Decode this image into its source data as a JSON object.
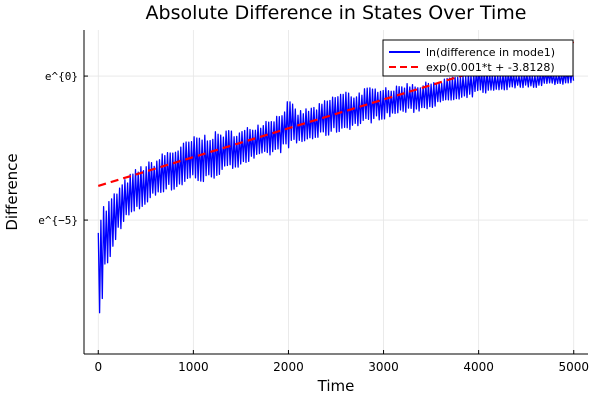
{
  "chart_data": {
    "type": "line",
    "title": "Absolute Difference in States Over Time",
    "xlabel": "Time",
    "ylabel": "Difference",
    "xlim": [
      -150,
      5150
    ],
    "ylim": [
      -9.65,
      1.6
    ],
    "x_ticks": [
      0,
      1000,
      2000,
      3000,
      4000,
      5000
    ],
    "x_tick_labels": [
      "0",
      "1000",
      "2000",
      "3000",
      "4000",
      "5000"
    ],
    "y_ticks": [
      0,
      -5
    ],
    "y_tick_labels": [
      "e^{0}",
      "e^{−5}"
    ],
    "grid": true,
    "legend_position": "top-right",
    "colors": {
      "series1": "#0000ff",
      "fit": "#ff0000"
    },
    "series": [
      {
        "name": "ln(difference in mode1)",
        "style": "solid",
        "x": [
          0,
          20,
          40,
          60,
          80,
          100,
          150,
          200,
          300,
          400,
          500,
          600,
          700,
          800,
          900,
          1000,
          1100,
          1200,
          1300,
          1400,
          1500,
          1600,
          1700,
          1800,
          1900,
          2000,
          2100,
          2200,
          2300,
          2400,
          2500,
          2600,
          2700,
          2800,
          2900,
          3000,
          3100,
          3200,
          3300,
          3400,
          3500,
          3600,
          3700,
          3800,
          3900,
          4000,
          4100,
          4200,
          4300,
          4400,
          4500,
          4600,
          4700,
          4800,
          4900,
          5000
        ],
        "upper": [
          -4.6,
          -4.5,
          -4.5,
          -4.4,
          -4.4,
          -4.3,
          -4.1,
          -3.9,
          -3.5,
          -3.2,
          -3.0,
          -2.9,
          -2.6,
          -2.5,
          -2.3,
          -2.1,
          -2.0,
          -1.95,
          -1.9,
          -1.85,
          -1.9,
          -1.7,
          -1.6,
          -1.4,
          -1.3,
          -0.8,
          -1.2,
          -1.1,
          -1.0,
          -0.8,
          -0.6,
          -0.5,
          -0.6,
          -0.4,
          -0.4,
          -0.3,
          -0.4,
          -0.25,
          -0.2,
          -0.3,
          -0.1,
          -0.2,
          0.05,
          0.0,
          0.1,
          0.3,
          0.15,
          0.05,
          0.2,
          0.1,
          0.15,
          0.05,
          0.2,
          0.1,
          0.15,
          0.35
        ],
        "lower": [
          -9.3,
          -8.8,
          -8.0,
          -6.5,
          -7.0,
          -6.8,
          -6.2,
          -5.5,
          -5.0,
          -4.8,
          -4.5,
          -4.2,
          -4.0,
          -4.0,
          -3.8,
          -3.6,
          -3.8,
          -3.6,
          -3.4,
          -3.3,
          -3.1,
          -3.0,
          -2.9,
          -2.8,
          -2.7,
          -2.5,
          -2.4,
          -2.3,
          -2.2,
          -2.1,
          -2.0,
          -1.9,
          -1.8,
          -1.7,
          -1.6,
          -1.5,
          -1.4,
          -1.3,
          -1.3,
          -1.2,
          -1.1,
          -1.0,
          -0.9,
          -0.9,
          -0.8,
          -0.6,
          -0.6,
          -0.5,
          -0.5,
          -0.4,
          -0.4,
          -0.4,
          -0.3,
          -0.3,
          -0.3,
          -0.2
        ]
      },
      {
        "name": "exp(0.001*t + -3.8128)",
        "style": "dashed",
        "slope": 0.001,
        "intercept": -3.8128,
        "x_range": [
          0,
          5000
        ]
      }
    ]
  }
}
